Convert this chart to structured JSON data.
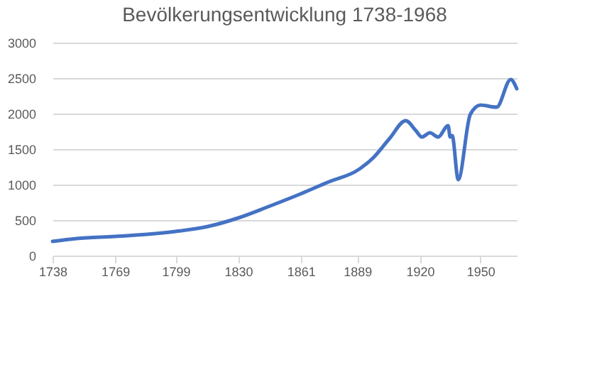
{
  "chart_data": {
    "type": "line",
    "title": "Bevölkerungsentwicklung 1738-1968",
    "x": [
      1738,
      1750,
      1769,
      1785,
      1799,
      1815,
      1830,
      1845,
      1861,
      1875,
      1889,
      1897,
      1905,
      1913,
      1918,
      1921,
      1925,
      1929,
      1934,
      1935,
      1936,
      1939,
      1945,
      1950,
      1958,
      1965,
      1968
    ],
    "series": [
      {
        "color": "#4472c4",
        "values": [
          200,
          240,
          270,
          300,
          340,
          410,
          530,
          690,
          870,
          1040,
          1200,
          1380,
          1650,
          1900,
          1760,
          1670,
          1730,
          1670,
          1830,
          1670,
          1690,
          1070,
          1990,
          2120,
          2090,
          2480,
          2350
        ]
      }
    ],
    "xlim": [
      1738,
      1968
    ],
    "xticks": [
      1738,
      1769,
      1799,
      1830,
      1861,
      1889,
      1920,
      1950
    ],
    "ylim": [
      0,
      3000
    ],
    "yticks": [
      0,
      500,
      1000,
      1500,
      2000,
      2500,
      3000
    ],
    "grid": "y",
    "marker": "none",
    "line_style": "solid"
  }
}
